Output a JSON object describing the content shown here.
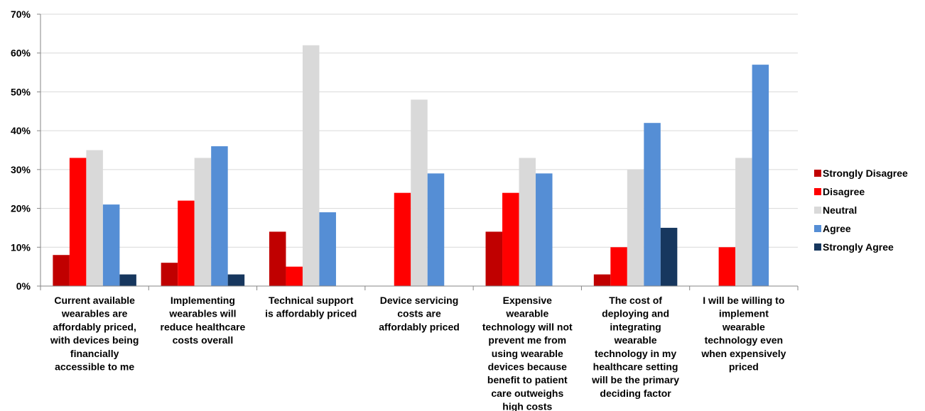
{
  "chart_data": {
    "type": "bar",
    "categories": [
      [
        "Current available",
        "wearables are",
        "affordably priced,",
        "with devices being",
        "financially",
        "accessible to me"
      ],
      [
        "Implementing",
        "wearables will",
        "reduce healthcare",
        "costs overall"
      ],
      [
        "Technical support",
        "is affordably priced"
      ],
      [
        "Device servicing",
        "costs are",
        "affordably priced"
      ],
      [
        "Expensive",
        "wearable",
        "technology will not",
        "prevent me from",
        "using wearable",
        "devices because",
        "benefit to patient",
        "care outweighs",
        "high costs"
      ],
      [
        "The cost of",
        "deploying and",
        "integrating",
        "wearable",
        "technology in my",
        "healthcare setting",
        "will be the primary",
        "deciding factor"
      ],
      [
        "I will be willing to",
        "implement",
        "wearable",
        "technology even",
        "when expensively",
        "priced"
      ]
    ],
    "series": [
      {
        "name": "Strongly Disagree",
        "color": "#C00000",
        "values": [
          8,
          6,
          14,
          0,
          14,
          3,
          0
        ]
      },
      {
        "name": "Disagree",
        "color": "#FF0000",
        "values": [
          33,
          22,
          5,
          24,
          24,
          10,
          10
        ]
      },
      {
        "name": "Neutral",
        "color": "#D9D9D9",
        "values": [
          35,
          33,
          62,
          48,
          33,
          30,
          33
        ]
      },
      {
        "name": "Agree",
        "color": "#558ED5",
        "values": [
          21,
          36,
          19,
          29,
          29,
          42,
          57
        ]
      },
      {
        "name": "Strongly Agree",
        "color": "#17375E",
        "values": [
          3,
          3,
          0,
          0,
          0,
          15,
          0
        ]
      }
    ],
    "y_ticks": [
      "0%",
      "10%",
      "20%",
      "30%",
      "40%",
      "50%",
      "60%",
      "70%"
    ],
    "ylim": [
      0,
      70
    ],
    "grid": true,
    "legend_position": "right"
  }
}
